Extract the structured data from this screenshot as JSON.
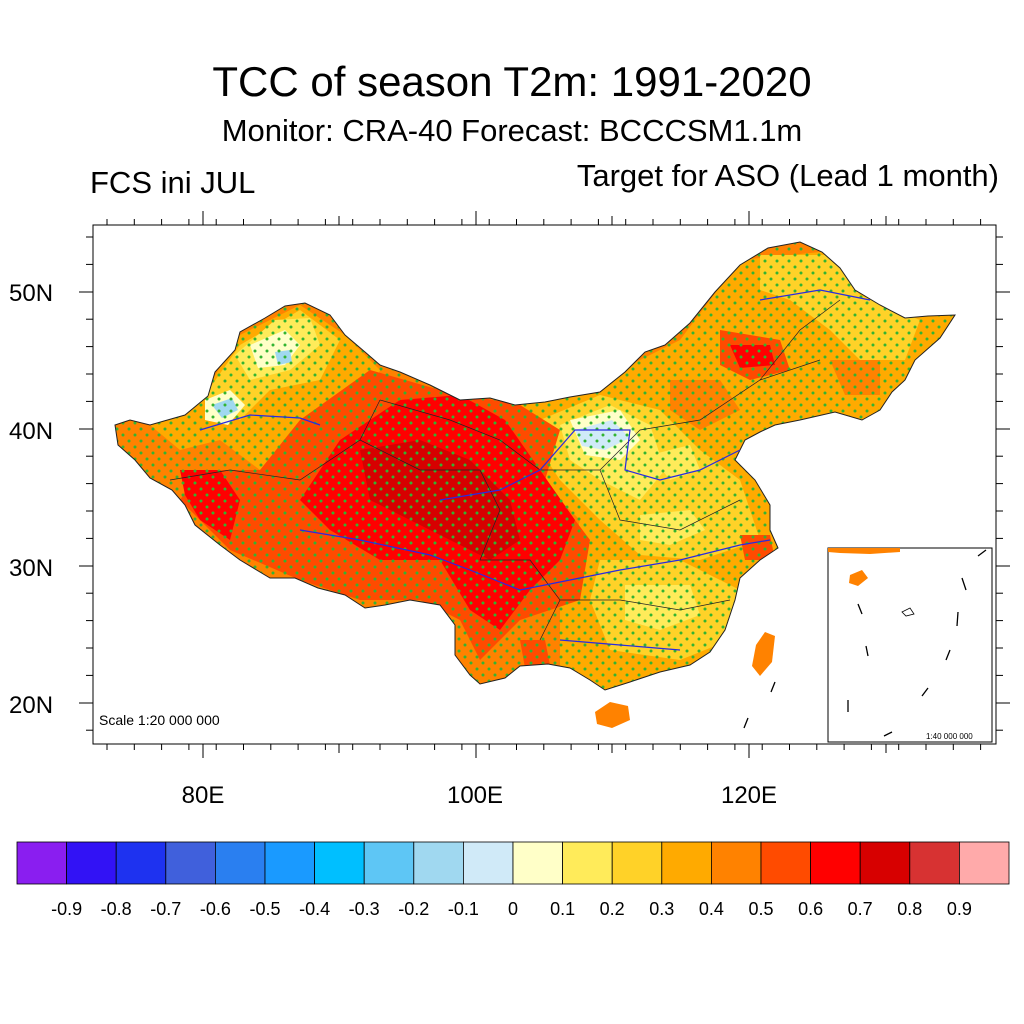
{
  "title": "TCC of season T2m: 1991-2020",
  "subtitle": "Monitor: CRA-40   Forecast: BCCCSM1.1m",
  "left_label": "FCS ini JUL",
  "right_label": "Target for ASO (Lead 1 month)",
  "map": {
    "lat_ticks": [
      "50N",
      "40N",
      "30N",
      "20N"
    ],
    "lon_ticks": [
      "80E",
      "100E",
      "120E"
    ],
    "scale_text": "Scale 1:20 000 000",
    "inset_scale_text": "1:40 000 000",
    "stipple_color": "#32b432",
    "river_color": "#2a2ae0",
    "border_color": "#222222"
  },
  "colorbar": {
    "colors": [
      "#8a1ef0",
      "#3212f5",
      "#1e32f0",
      "#4060dc",
      "#2a7ff0",
      "#1a9aff",
      "#00bfff",
      "#5ec6f5",
      "#a0d8f0",
      "#d0eaf8",
      "#ffffc8",
      "#ffeb5a",
      "#ffd228",
      "#ffaa00",
      "#ff8200",
      "#ff4b00",
      "#ff0000",
      "#d70000",
      "#d73232",
      "#ffaaaa"
    ],
    "labels": [
      "-0.9",
      "-0.8",
      "-0.7",
      "-0.6",
      "-0.5",
      "-0.4",
      "-0.3",
      "-0.2",
      "-0.1",
      "0",
      "0.1",
      "0.2",
      "0.3",
      "0.4",
      "0.5",
      "0.6",
      "0.7",
      "0.8",
      "0.9"
    ]
  }
}
